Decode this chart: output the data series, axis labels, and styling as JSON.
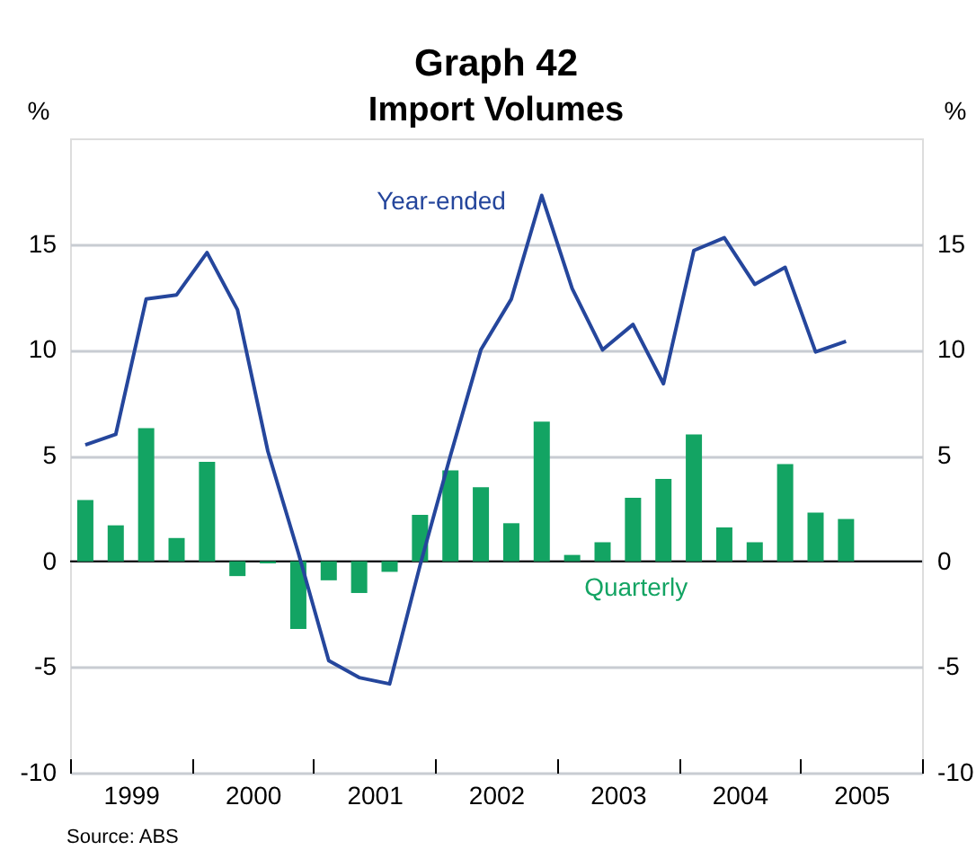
{
  "chart_data": {
    "type": "bar",
    "title": "Graph 42",
    "subtitle": "Import Volumes",
    "ylabel": "%",
    "y2label": "%",
    "x": [
      1999.125,
      1999.375,
      1999.625,
      1999.875,
      2000.125,
      2000.375,
      2000.625,
      2000.875,
      2001.125,
      2001.375,
      2001.625,
      2001.875,
      2002.125,
      2002.375,
      2002.625,
      2002.875,
      2003.125,
      2003.375,
      2003.625,
      2003.875,
      2004.125,
      2004.375,
      2004.625,
      2004.875,
      2005.125,
      2005.375
    ],
    "series": [
      {
        "name": "Quarterly",
        "color": "#13a463",
        "values": [
          2.9,
          1.7,
          6.3,
          1.1,
          4.7,
          -0.7,
          -0.1,
          -3.2,
          -0.9,
          -1.5,
          -0.5,
          2.2,
          4.3,
          3.5,
          1.8,
          6.6,
          0.3,
          0.9,
          3.0,
          3.9,
          6.0,
          1.6,
          0.9,
          4.6,
          2.3,
          2.0
        ]
      },
      {
        "name": "Year-ended",
        "type": "line",
        "color": "#25469c",
        "values": [
          5.5,
          6.0,
          12.4,
          12.6,
          14.6,
          11.9,
          5.2,
          0.4,
          -4.7,
          -5.5,
          -5.8,
          -0.2,
          5.0,
          10.0,
          12.4,
          17.3,
          12.9,
          10.0,
          11.2,
          8.4,
          14.7,
          15.3,
          13.1,
          13.9,
          9.9,
          10.4
        ]
      }
    ],
    "xlim": [
      1999,
      2006
    ],
    "xticks": [
      {
        "value": 1999,
        "label": null
      },
      {
        "value": 1999.5,
        "label": "1999"
      },
      {
        "value": 2000,
        "label": null
      },
      {
        "value": 2000.5,
        "label": "2000"
      },
      {
        "value": 2001,
        "label": null
      },
      {
        "value": 2001.5,
        "label": "2001"
      },
      {
        "value": 2002,
        "label": null
      },
      {
        "value": 2002.5,
        "label": "2002"
      },
      {
        "value": 2003,
        "label": null
      },
      {
        "value": 2003.5,
        "label": "2003"
      },
      {
        "value": 2004,
        "label": null
      },
      {
        "value": 2004.5,
        "label": "2004"
      },
      {
        "value": 2005,
        "label": null
      },
      {
        "value": 2005.5,
        "label": "2005"
      },
      {
        "value": 2006,
        "label": null
      }
    ],
    "ylim": [
      -10,
      20
    ],
    "yticks": [
      -10,
      -5,
      0,
      5,
      10,
      15
    ],
    "y2lim": [
      -10,
      20
    ],
    "y2ticks": [
      -10,
      -5,
      0,
      5,
      10,
      15
    ],
    "grid": "y",
    "legend": false,
    "ref_lines": [
      {
        "axis": "y",
        "value": 0,
        "color": "#000000"
      }
    ],
    "annotations": [
      "Source: ABS"
    ]
  }
}
